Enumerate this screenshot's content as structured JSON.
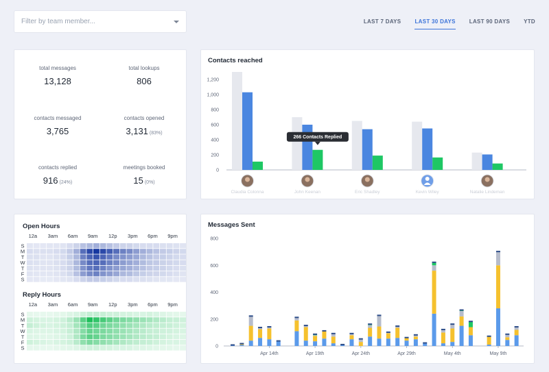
{
  "filter": {
    "placeholder": "Filter by team member..."
  },
  "tabs": [
    {
      "label": "LAST 7 DAYS",
      "active": false
    },
    {
      "label": "LAST 30 DAYS",
      "active": true
    },
    {
      "label": "LAST 90 DAYS",
      "active": false
    },
    {
      "label": "YTD",
      "active": false
    }
  ],
  "stats": {
    "total_messages": {
      "label": "total messages",
      "value": "13,128"
    },
    "total_lookups": {
      "label": "total lookups",
      "value": "806"
    },
    "contacts_messaged": {
      "label": "contacts messaged",
      "value": "3,765"
    },
    "contacts_opened": {
      "label": "contacts opened",
      "value": "3,131",
      "pct": "(83%)"
    },
    "contacts_replied": {
      "label": "contacts replied",
      "value": "916",
      "pct": "(24%)"
    },
    "meetings_booked": {
      "label": "meetings booked",
      "value": "15",
      "pct": "(0%)"
    }
  },
  "colors": {
    "accent": "#3b73d9",
    "grey_bar": "#e6e8ee",
    "blue_bar": "#4a86e0",
    "green_bar": "#1ec764",
    "yellow": "#f5c12e",
    "orange": "#f5b82e"
  },
  "contacts_reached": {
    "title": "Contacts reached",
    "tooltip": "266 Contacts Replied",
    "tooltip_target": 1,
    "avatar_icons": [
      "user-photo-icon",
      "user-photo-icon",
      "user-photo-icon",
      "default-avatar-icon",
      "user-photo-icon"
    ],
    "members": [
      "Claudia Colonna",
      "John Keenan",
      "Eric Shadley",
      "Kevin Wiley",
      "Natalie Lindeman"
    ]
  },
  "hours": {
    "open_title": "Open Hours",
    "reply_title": "Reply Hours",
    "hour_labels": [
      "12a",
      "3am",
      "6am",
      "9am",
      "12p",
      "3pm",
      "6pm",
      "9pm"
    ],
    "day_labels": [
      "S",
      "M",
      "T",
      "W",
      "T",
      "F",
      "S"
    ]
  },
  "messages_title": "Messages Sent",
  "chart_data": [
    {
      "type": "bar",
      "title": "Contacts reached",
      "categories": [
        "Claudia Colonna",
        "John Keenan",
        "Eric Shadley",
        "Kevin Wiley",
        "Natalie Lindeman"
      ],
      "series": [
        {
          "values": [
            1300,
            700,
            650,
            640,
            230
          ]
        },
        {
          "values": [
            1030,
            600,
            540,
            550,
            205
          ]
        },
        {
          "values": [
            110,
            266,
            190,
            165,
            85
          ]
        }
      ],
      "yticks": [
        0,
        200,
        400,
        600,
        800,
        1000,
        1200
      ],
      "ylim": [
        0,
        1300
      ]
    },
    {
      "type": "heatmap",
      "title": "Open Hours",
      "rows": [
        "S",
        "M",
        "T",
        "W",
        "T",
        "F",
        "S"
      ],
      "columns": 24,
      "values": [
        [
          0.05,
          0.04,
          0.04,
          0.05,
          0.05,
          0.06,
          0.1,
          0.15,
          0.25,
          0.3,
          0.35,
          0.3,
          0.25,
          0.2,
          0.15,
          0.15,
          0.12,
          0.1,
          0.1,
          0.1,
          0.08,
          0.08,
          0.07,
          0.06
        ],
        [
          0.1,
          0.08,
          0.08,
          0.08,
          0.1,
          0.12,
          0.2,
          0.35,
          0.7,
          0.9,
          1.0,
          0.9,
          0.8,
          0.7,
          0.6,
          0.55,
          0.45,
          0.35,
          0.3,
          0.25,
          0.2,
          0.18,
          0.15,
          0.12
        ],
        [
          0.08,
          0.08,
          0.06,
          0.06,
          0.08,
          0.1,
          0.18,
          0.3,
          0.6,
          0.75,
          0.85,
          0.75,
          0.65,
          0.55,
          0.5,
          0.45,
          0.4,
          0.3,
          0.25,
          0.2,
          0.18,
          0.15,
          0.12,
          0.1
        ],
        [
          0.08,
          0.07,
          0.06,
          0.06,
          0.08,
          0.1,
          0.15,
          0.3,
          0.55,
          0.7,
          0.75,
          0.7,
          0.6,
          0.55,
          0.45,
          0.4,
          0.35,
          0.28,
          0.22,
          0.2,
          0.16,
          0.14,
          0.12,
          0.1
        ],
        [
          0.07,
          0.06,
          0.06,
          0.06,
          0.07,
          0.1,
          0.15,
          0.28,
          0.5,
          0.65,
          0.7,
          0.6,
          0.5,
          0.45,
          0.4,
          0.35,
          0.3,
          0.25,
          0.2,
          0.18,
          0.15,
          0.12,
          0.1,
          0.08
        ],
        [
          0.06,
          0.05,
          0.05,
          0.05,
          0.06,
          0.08,
          0.12,
          0.25,
          0.45,
          0.55,
          0.6,
          0.5,
          0.45,
          0.4,
          0.3,
          0.28,
          0.22,
          0.18,
          0.15,
          0.14,
          0.12,
          0.1,
          0.08,
          0.06
        ],
        [
          0.04,
          0.04,
          0.03,
          0.03,
          0.04,
          0.05,
          0.06,
          0.1,
          0.15,
          0.2,
          0.2,
          0.18,
          0.15,
          0.12,
          0.1,
          0.1,
          0.08,
          0.08,
          0.07,
          0.06,
          0.05,
          0.05,
          0.04,
          0.04
        ]
      ]
    },
    {
      "type": "heatmap",
      "title": "Reply Hours",
      "rows": [
        "S",
        "M",
        "T",
        "W",
        "T",
        "F",
        "S"
      ],
      "columns": 24,
      "values": [
        [
          0.04,
          0.03,
          0.03,
          0.03,
          0.04,
          0.05,
          0.08,
          0.1,
          0.15,
          0.2,
          0.2,
          0.18,
          0.15,
          0.15,
          0.12,
          0.12,
          0.1,
          0.1,
          0.12,
          0.1,
          0.08,
          0.06,
          0.05,
          0.04
        ],
        [
          0.15,
          0.12,
          0.1,
          0.1,
          0.12,
          0.15,
          0.25,
          0.4,
          0.7,
          1.0,
          0.9,
          0.8,
          0.7,
          0.6,
          0.55,
          0.5,
          0.45,
          0.4,
          0.35,
          0.3,
          0.25,
          0.2,
          0.18,
          0.15
        ],
        [
          0.2,
          0.15,
          0.12,
          0.1,
          0.12,
          0.15,
          0.2,
          0.35,
          0.55,
          0.75,
          0.7,
          0.6,
          0.55,
          0.5,
          0.45,
          0.4,
          0.35,
          0.3,
          0.25,
          0.22,
          0.2,
          0.18,
          0.15,
          0.12
        ],
        [
          0.1,
          0.08,
          0.08,
          0.08,
          0.1,
          0.12,
          0.18,
          0.3,
          0.5,
          0.65,
          0.6,
          0.55,
          0.5,
          0.45,
          0.4,
          0.35,
          0.3,
          0.25,
          0.2,
          0.18,
          0.15,
          0.14,
          0.12,
          0.1
        ],
        [
          0.08,
          0.07,
          0.06,
          0.06,
          0.08,
          0.1,
          0.15,
          0.3,
          0.55,
          0.7,
          0.65,
          0.55,
          0.5,
          0.45,
          0.4,
          0.35,
          0.3,
          0.25,
          0.22,
          0.2,
          0.15,
          0.12,
          0.1,
          0.08
        ],
        [
          0.15,
          0.12,
          0.1,
          0.08,
          0.1,
          0.12,
          0.15,
          0.25,
          0.45,
          0.55,
          0.5,
          0.45,
          0.4,
          0.35,
          0.3,
          0.25,
          0.22,
          0.2,
          0.18,
          0.15,
          0.12,
          0.1,
          0.1,
          0.08
        ],
        [
          0.04,
          0.04,
          0.03,
          0.03,
          0.04,
          0.05,
          0.06,
          0.08,
          0.12,
          0.15,
          0.15,
          0.12,
          0.12,
          0.1,
          0.1,
          0.1,
          0.08,
          0.08,
          0.07,
          0.06,
          0.05,
          0.05,
          0.04,
          0.04
        ]
      ]
    },
    {
      "type": "bar",
      "stacked": true,
      "title": "Messages Sent",
      "categories": [
        "Apr 10",
        "Apr 11",
        "Apr 12",
        "Apr 13",
        "Apr 14",
        "Apr 15",
        "Apr 16",
        "Apr 17",
        "Apr 18",
        "Apr 19",
        "Apr 20",
        "Apr 21",
        "Apr 22",
        "Apr 23",
        "Apr 24",
        "Apr 25",
        "Apr 26",
        "Apr 27",
        "Apr 28",
        "Apr 29",
        "Apr 30",
        "May 1",
        "May 2",
        "May 3",
        "May 4",
        "May 5",
        "May 6",
        "May 7",
        "May 8",
        "May 9",
        "May 10",
        "May 11"
      ],
      "series": [
        {
          "color": "blue",
          "values": [
            5,
            8,
            40,
            60,
            50,
            35,
            0,
            110,
            40,
            35,
            55,
            20,
            8,
            50,
            0,
            70,
            55,
            55,
            60,
            40,
            50,
            20,
            240,
            20,
            30,
            150,
            80,
            0,
            10,
            280,
            45,
            80
          ]
        },
        {
          "color": "yellow",
          "values": [
            0,
            5,
            110,
            65,
            80,
            0,
            0,
            80,
            100,
            40,
            55,
            50,
            0,
            30,
            30,
            65,
            90,
            40,
            75,
            20,
            20,
            0,
            320,
            80,
            100,
            70,
            60,
            0,
            60,
            320,
            20,
            40
          ]
        },
        {
          "color": "grey",
          "values": [
            0,
            2,
            70,
            10,
            10,
            0,
            0,
            20,
            10,
            5,
            0,
            20,
            0,
            10,
            20,
            20,
            80,
            5,
            10,
            0,
            10,
            0,
            40,
            20,
            30,
            40,
            0,
            0,
            0,
            100,
            20,
            20
          ]
        },
        {
          "color": "green",
          "values": [
            0,
            0,
            0,
            0,
            0,
            0,
            0,
            0,
            0,
            5,
            0,
            0,
            0,
            0,
            0,
            5,
            0,
            0,
            0,
            0,
            0,
            0,
            20,
            0,
            0,
            5,
            40,
            0,
            0,
            0,
            0,
            0
          ]
        }
      ],
      "xtick_labels": [
        "Apr 14th",
        "Apr 19th",
        "Apr 24th",
        "Apr 29th",
        "May 4th",
        "May 9th"
      ],
      "yticks": [
        0,
        200,
        400,
        600,
        800
      ],
      "ylim": [
        0,
        800
      ]
    }
  ]
}
